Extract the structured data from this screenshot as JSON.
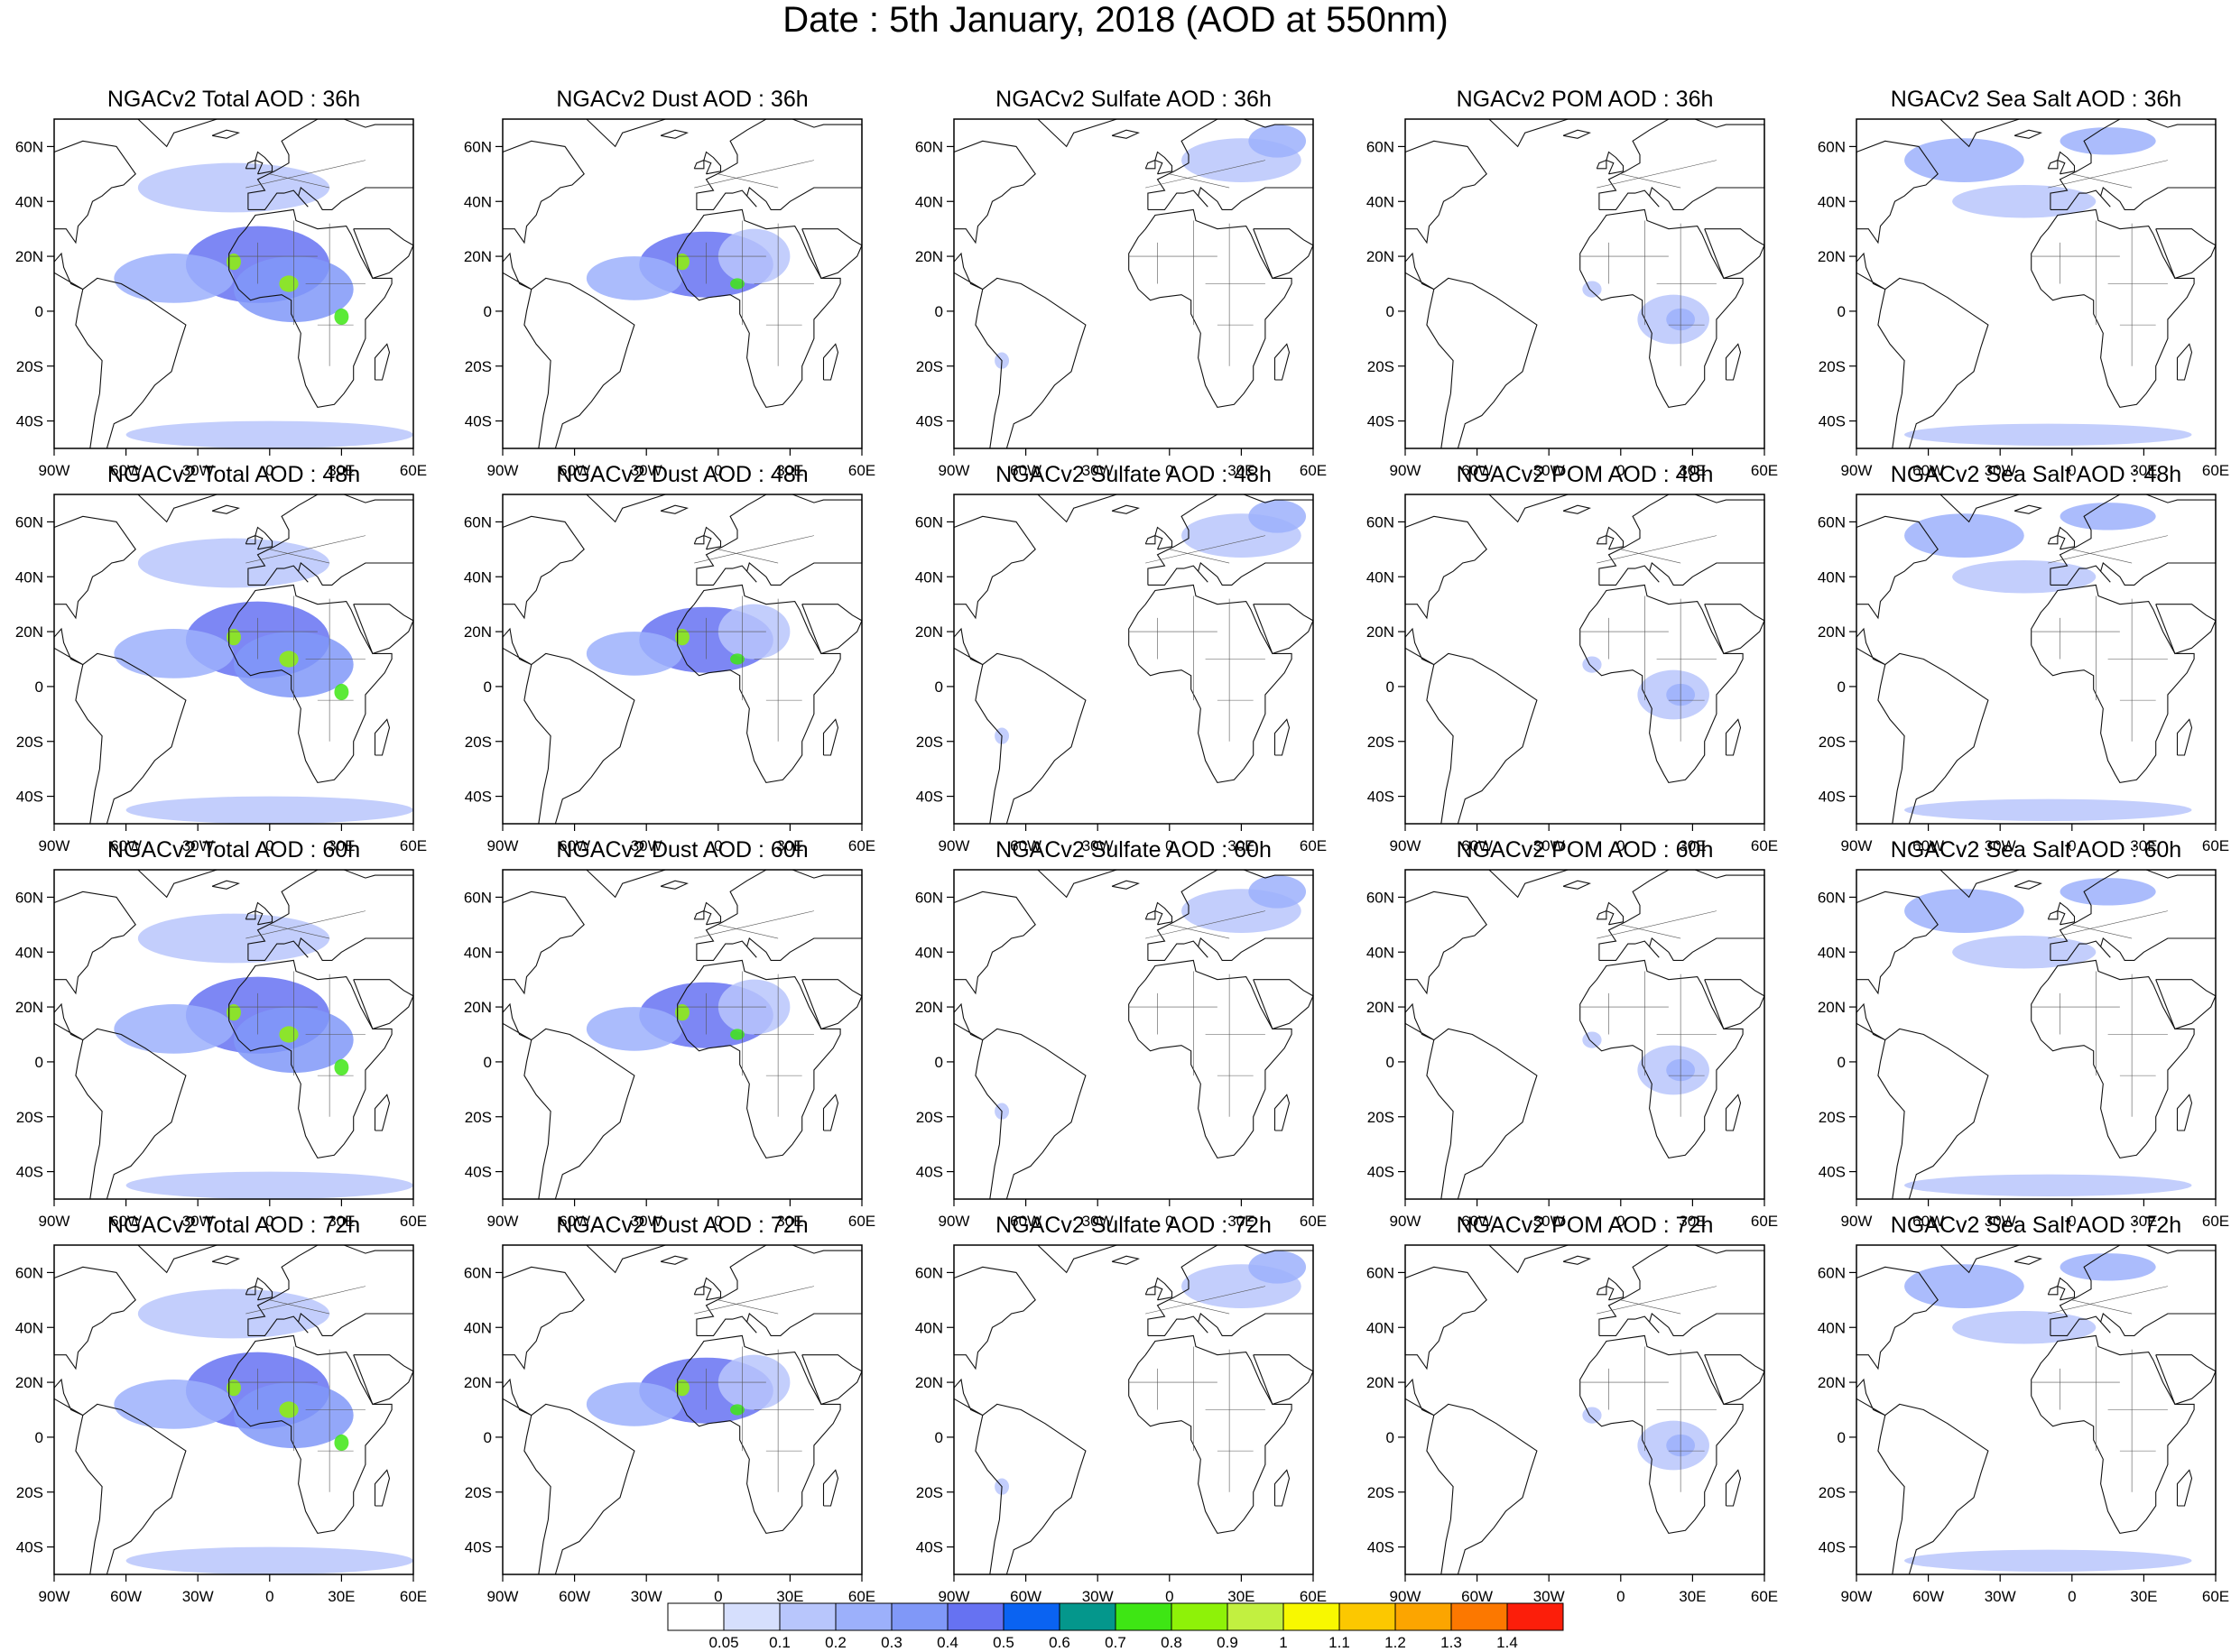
{
  "title": "Date : 5th January, 2018 (AOD at 550nm)",
  "grid": {
    "rows": [
      "36h",
      "48h",
      "60h",
      "72h"
    ],
    "columns": [
      "Total",
      "Dust",
      "Sulfate",
      "POM",
      "Sea Salt"
    ]
  },
  "panels": [
    [
      "NGACv2 Total AOD : 36h",
      "NGACv2 Dust AOD : 36h",
      "NGACv2 Sulfate AOD : 36h",
      "NGACv2 POM AOD : 36h",
      "NGACv2 Sea Salt AOD : 36h"
    ],
    [
      "NGACv2 Total AOD : 48h",
      "NGACv2 Dust AOD : 48h",
      "NGACv2 Sulfate AOD : 48h",
      "NGACv2 POM AOD : 48h",
      "NGACv2 Sea Salt AOD : 48h"
    ],
    [
      "NGACv2 Total AOD : 60h",
      "NGACv2 Dust AOD : 60h",
      "NGACv2 Sulfate AOD : 60h",
      "NGACv2 POM AOD : 60h",
      "NGACv2 Sea Salt AOD : 60h"
    ],
    [
      "NGACv2 Total AOD : 72h",
      "NGACv2 Dust AOD : 72h",
      "NGACv2 Sulfate AOD : 72h",
      "NGACv2 POM AOD : 72h",
      "NGACv2 Sea Salt  AOD : 72h"
    ]
  ],
  "map_extent": {
    "lon": [
      -90,
      60
    ],
    "lat": [
      -50,
      70
    ]
  },
  "x_ticks": [
    {
      "lon": -90,
      "label": "90W"
    },
    {
      "lon": -60,
      "label": "60W"
    },
    {
      "lon": -30,
      "label": "30W"
    },
    {
      "lon": 0,
      "label": "0"
    },
    {
      "lon": 30,
      "label": "30E"
    },
    {
      "lon": 60,
      "label": "60E"
    }
  ],
  "y_ticks": [
    {
      "lat": 60,
      "label": "60N"
    },
    {
      "lat": 40,
      "label": "40N"
    },
    {
      "lat": 20,
      "label": "20N"
    },
    {
      "lat": 0,
      "label": "0"
    },
    {
      "lat": -20,
      "label": "20S"
    },
    {
      "lat": -40,
      "label": "40S"
    }
  ],
  "colorbar": {
    "labels": [
      "0.05",
      "0.1",
      "0.2",
      "0.3",
      "0.4",
      "0.5",
      "0.6",
      "0.7",
      "0.8",
      "0.9",
      "1",
      "1.1",
      "1.2",
      "1.3",
      "1.4"
    ],
    "colors": [
      "#ffffff",
      "#d6dffd",
      "#b8c6fc",
      "#9cb0fb",
      "#8098f8",
      "#6672f2",
      "#0a63f2",
      "#04978c",
      "#3ee614",
      "#8ef208",
      "#c2f040",
      "#f8f800",
      "#fcc800",
      "#fca500",
      "#fc7800",
      "#fc1e0a"
    ]
  },
  "aod_features": {
    "Total": [
      {
        "lon": -5,
        "lat": 17,
        "rlon": 30,
        "rlat": 14,
        "value": 0.4
      },
      {
        "lon": 10,
        "lat": 8,
        "rlon": 25,
        "rlat": 12,
        "value": 0.3
      },
      {
        "lon": -40,
        "lat": 12,
        "rlon": 25,
        "rlat": 9,
        "value": 0.2
      },
      {
        "lon": -15,
        "lat": 45,
        "rlon": 40,
        "rlat": 9,
        "value": 0.1
      },
      {
        "lon": 0,
        "lat": -45,
        "rlon": 60,
        "rlat": 5,
        "value": 0.1
      },
      {
        "lon": -15,
        "lat": 18,
        "rlon": 3,
        "rlat": 3,
        "value": 0.8
      },
      {
        "lon": 8,
        "lat": 10,
        "rlon": 4,
        "rlat": 3,
        "value": 0.8
      },
      {
        "lon": 30,
        "lat": -2,
        "rlon": 3,
        "rlat": 3,
        "value": 0.7
      }
    ],
    "Dust": [
      {
        "lon": -5,
        "lat": 17,
        "rlon": 28,
        "rlat": 12,
        "value": 0.4
      },
      {
        "lon": -35,
        "lat": 12,
        "rlon": 20,
        "rlat": 8,
        "value": 0.2
      },
      {
        "lon": 15,
        "lat": 20,
        "rlon": 15,
        "rlat": 10,
        "value": 0.1
      },
      {
        "lon": -15,
        "lat": 18,
        "rlon": 3,
        "rlat": 3,
        "value": 0.8
      },
      {
        "lon": 8,
        "lat": 10,
        "rlon": 3,
        "rlat": 2,
        "value": 0.7
      }
    ],
    "Sulfate": [
      {
        "lon": 30,
        "lat": 55,
        "rlon": 25,
        "rlat": 8,
        "value": 0.1
      },
      {
        "lon": 45,
        "lat": 62,
        "rlon": 12,
        "rlat": 6,
        "value": 0.2
      },
      {
        "lon": -70,
        "lat": -18,
        "rlon": 3,
        "rlat": 3,
        "value": 0.1
      }
    ],
    "POM": [
      {
        "lon": 22,
        "lat": -3,
        "rlon": 15,
        "rlat": 9,
        "value": 0.1
      },
      {
        "lon": 25,
        "lat": -3,
        "rlon": 6,
        "rlat": 4,
        "value": 0.2
      },
      {
        "lon": -12,
        "lat": 8,
        "rlon": 4,
        "rlat": 3,
        "value": 0.1
      }
    ],
    "Sea Salt": [
      {
        "lon": -45,
        "lat": 55,
        "rlon": 25,
        "rlat": 8,
        "value": 0.2
      },
      {
        "lon": -20,
        "lat": 40,
        "rlon": 30,
        "rlat": 6,
        "value": 0.1
      },
      {
        "lon": 15,
        "lat": 62,
        "rlon": 20,
        "rlat": 5,
        "value": 0.2
      },
      {
        "lon": -10,
        "lat": -45,
        "rlon": 60,
        "rlat": 4,
        "value": 0.1
      }
    ]
  }
}
